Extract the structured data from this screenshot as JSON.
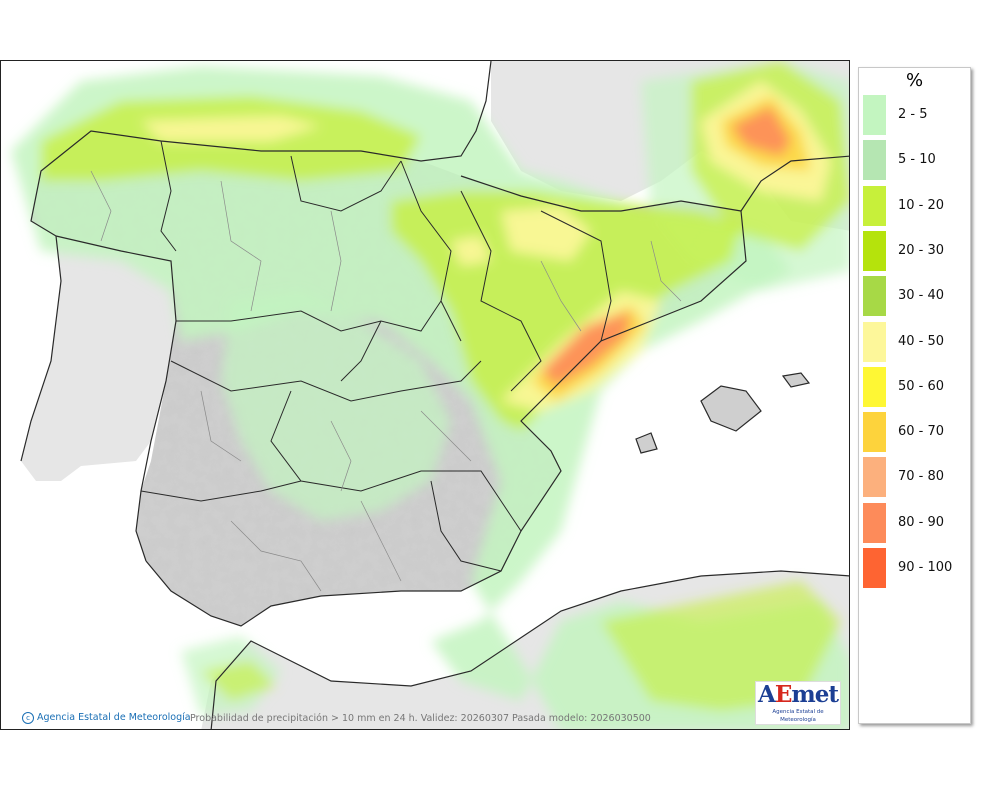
{
  "legend": {
    "title": "%",
    "items": [
      {
        "label": "2 - 5",
        "color": "#c3f5c0"
      },
      {
        "label": "5 - 10",
        "color": "#b5e6b2"
      },
      {
        "label": "10 - 20",
        "color": "#c7f03a"
      },
      {
        "label": "20 - 30",
        "color": "#b5e30c"
      },
      {
        "label": "30 - 40",
        "color": "#a7d946"
      },
      {
        "label": "40 - 50",
        "color": "#fdf79a"
      },
      {
        "label": "50 - 60",
        "color": "#fef734"
      },
      {
        "label": "60 - 70",
        "color": "#fdd33c"
      },
      {
        "label": "70 - 80",
        "color": "#fcb07d"
      },
      {
        "label": "80 - 90",
        "color": "#fd8b5a"
      },
      {
        "label": "90 - 100",
        "color": "#fe6432"
      }
    ]
  },
  "footer": {
    "credit": "Agencia Estatal de Meteorología",
    "caption": "Probabilidad de precipitación > 10 mm en 24 h. Validez: 20260307 Pasada modelo: 2026030500"
  },
  "logo": {
    "word_a": "A",
    "word_e": "E",
    "word_rest": "met",
    "subtitle": "Agencia Estatal de Meteorología"
  },
  "colors": {
    "land_gray": "#d4d4d4",
    "sea": "#ffffff",
    "outside_land": "#e6e6e6",
    "border": "#2a2a2a",
    "admin_border": "#8a8a8a"
  }
}
